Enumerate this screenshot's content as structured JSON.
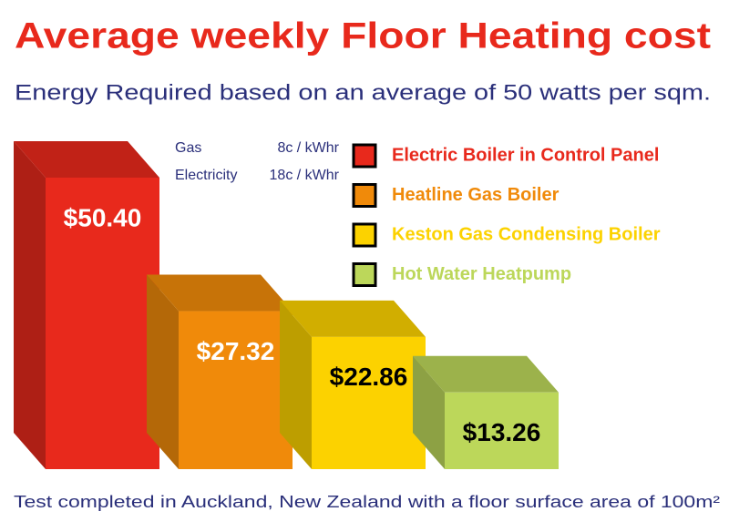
{
  "chart_data": {
    "type": "bar",
    "title": "Average weekly Floor Heating cost",
    "subtitle": "Energy Required based on an average of 50 watts per sqm.",
    "rates": [
      {
        "name": "Gas",
        "rate": "8c / kWhr"
      },
      {
        "name": "Electricity",
        "rate": "18c / kWhr"
      }
    ],
    "categories": [
      "Electric Boiler in Control Panel",
      "Heatline Gas Boiler",
      "Keston Gas Condensing Boiler",
      "Hot Water Heatpump"
    ],
    "values": [
      50.4,
      27.32,
      22.86,
      13.26
    ],
    "value_labels": [
      "$50.40",
      "$27.32",
      "$22.86",
      "$13.26"
    ],
    "colors": [
      "#e8291c",
      "#f08a0a",
      "#fcd200",
      "#bcd75a"
    ],
    "value_label_colors": [
      "#ffffff",
      "#ffffff",
      "#000000",
      "#000000"
    ],
    "footnote": "Test completed in Auckland, New Zealand with a floor surface area of 100m²"
  }
}
